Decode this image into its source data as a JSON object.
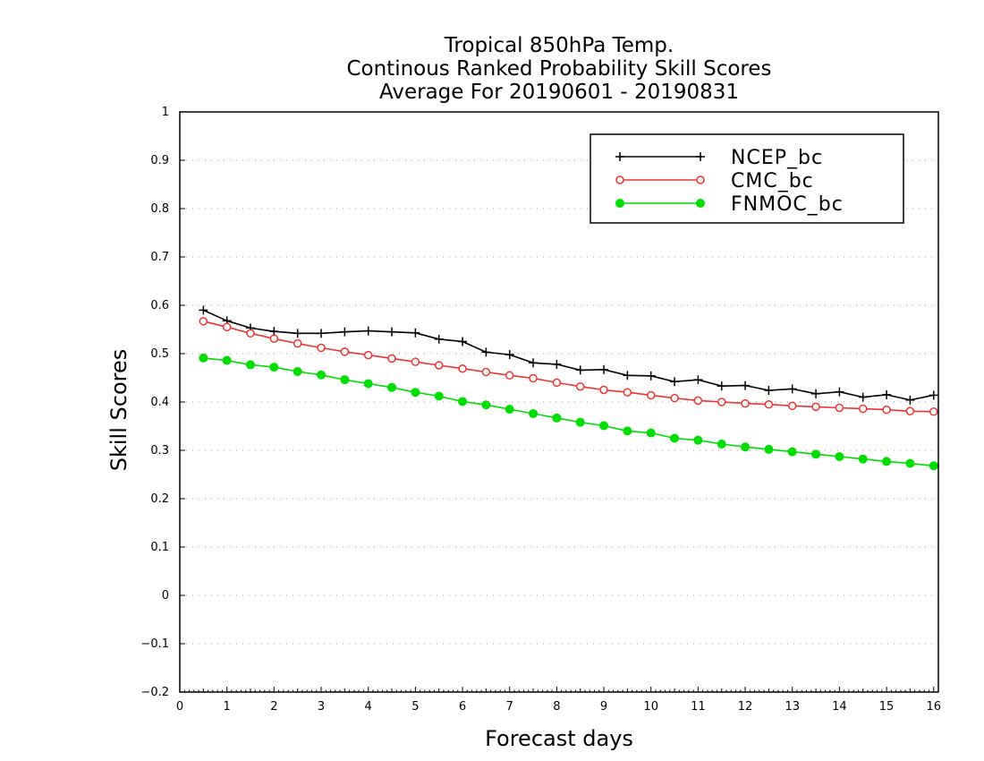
{
  "chart_data": {
    "type": "line",
    "title": [
      "Tropical 850hPa Temp.",
      "Continous Ranked Probability Skill Scores",
      "Average For 20190601 - 20190831"
    ],
    "xlabel": "Forecast days",
    "ylabel": "Skill Scores",
    "xlim": [
      0,
      16.1
    ],
    "ylim": [
      -0.2,
      1
    ],
    "xticks": [
      "0",
      "1",
      "2",
      "3",
      "4",
      "5",
      "6",
      "7",
      "8",
      "9",
      "10",
      "11",
      "12",
      "13",
      "14",
      "15",
      "16"
    ],
    "yticks": [
      "−0.2",
      "−0.1",
      "0",
      "0.1",
      "0.2",
      "0.3",
      "0.4",
      "0.5",
      "0.6",
      "0.7",
      "0.8",
      "0.9",
      "1"
    ],
    "grid": "dotted horizontal",
    "legend_position": "top-right",
    "x": [
      0.5,
      1,
      1.5,
      2,
      2.5,
      3,
      3.5,
      4,
      4.5,
      5,
      5.5,
      6,
      6.5,
      7,
      7.5,
      8,
      8.5,
      9,
      9.5,
      10,
      10.5,
      11,
      11.5,
      12,
      12.5,
      13,
      13.5,
      14,
      14.5,
      15,
      15.5,
      16
    ],
    "series": [
      {
        "name": "NCEP_bc",
        "color": "#000000",
        "marker": "plus",
        "values": [
          0.59,
          0.568,
          0.553,
          0.546,
          0.542,
          0.542,
          0.545,
          0.547,
          0.545,
          0.543,
          0.53,
          0.525,
          0.503,
          0.498,
          0.481,
          0.478,
          0.466,
          0.467,
          0.455,
          0.454,
          0.442,
          0.446,
          0.433,
          0.434,
          0.424,
          0.427,
          0.417,
          0.421,
          0.41,
          0.415,
          0.404,
          0.414
        ]
      },
      {
        "name": "CMC_bc",
        "color": "#ee3333",
        "marker": "open-circle",
        "values": [
          0.567,
          0.555,
          0.542,
          0.531,
          0.521,
          0.512,
          0.504,
          0.497,
          0.49,
          0.483,
          0.476,
          0.469,
          0.462,
          0.455,
          0.449,
          0.44,
          0.432,
          0.425,
          0.42,
          0.414,
          0.408,
          0.403,
          0.4,
          0.397,
          0.395,
          0.392,
          0.39,
          0.388,
          0.386,
          0.384,
          0.381,
          0.38
        ]
      },
      {
        "name": "FNMOC_bc",
        "color": "#00dd00",
        "marker": "filled-circle",
        "values": [
          0.491,
          0.486,
          0.477,
          0.472,
          0.463,
          0.456,
          0.446,
          0.438,
          0.43,
          0.42,
          0.412,
          0.401,
          0.394,
          0.385,
          0.376,
          0.367,
          0.358,
          0.351,
          0.34,
          0.336,
          0.325,
          0.321,
          0.313,
          0.307,
          0.302,
          0.297,
          0.292,
          0.287,
          0.282,
          0.277,
          0.273,
          0.268
        ]
      }
    ]
  }
}
